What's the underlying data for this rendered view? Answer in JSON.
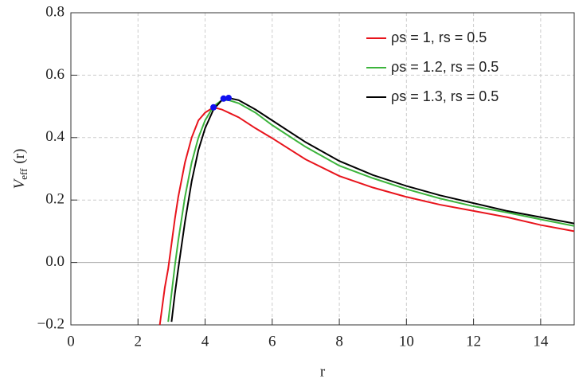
{
  "chart_data": {
    "type": "line",
    "xlabel": "r",
    "ylabel": "V",
    "ylabel_sub": "eff",
    "ylabel_arg": "(r)",
    "x": [
      2.65,
      2.8,
      2.9,
      3.0,
      3.1,
      3.2,
      3.4,
      3.6,
      3.8,
      4.0,
      4.25,
      4.5,
      4.7,
      5,
      5.5,
      6,
      7,
      8,
      9,
      10,
      11,
      12,
      13,
      14,
      15
    ],
    "series": [
      {
        "name": "ρs = 1, rs = 0.5",
        "color": "#e8141c",
        "values": [
          -0.2,
          -0.08,
          -0.02,
          0.06,
          0.14,
          0.21,
          0.32,
          0.4,
          0.455,
          0.48,
          0.497,
          0.49,
          0.48,
          0.465,
          0.43,
          0.398,
          0.33,
          0.277,
          0.24,
          0.21,
          0.185,
          0.165,
          0.145,
          0.12,
          0.1
        ]
      },
      {
        "name": "ρs = 1.2, rs = 0.5",
        "color": "#3cb43c",
        "values": [
          null,
          null,
          -0.19,
          -0.1,
          -0.01,
          0.07,
          0.21,
          0.32,
          0.4,
          0.455,
          0.5,
          0.52,
          0.52,
          0.51,
          0.48,
          0.44,
          0.37,
          0.31,
          0.27,
          0.235,
          0.205,
          0.18,
          0.16,
          0.138,
          0.117
        ]
      },
      {
        "name": "ρs = 1.3, rs = 0.5",
        "color": "#000000",
        "values": [
          null,
          null,
          null,
          -0.19,
          -0.1,
          -0.02,
          0.13,
          0.26,
          0.36,
          0.43,
          0.49,
          0.52,
          0.527,
          0.52,
          0.49,
          0.455,
          0.385,
          0.325,
          0.28,
          0.245,
          0.215,
          0.19,
          0.165,
          0.145,
          0.125
        ]
      }
    ],
    "points": {
      "color": "#1010f0",
      "x": [
        4.25,
        4.55,
        4.7
      ],
      "y": [
        0.497,
        0.525,
        0.527
      ]
    },
    "xlim": [
      0,
      15
    ],
    "xticks": [
      0,
      2,
      4,
      6,
      8,
      10,
      12,
      14
    ],
    "ylim": [
      -0.2,
      0.8
    ],
    "yticks": [
      {
        "value": -0.2,
        "label": "−0.2"
      },
      {
        "value": 0,
        "label": "0.0"
      },
      {
        "value": 0.2,
        "label": "0.2"
      },
      {
        "value": 0.4,
        "label": "0.4"
      },
      {
        "value": 0.6,
        "label": "0.6"
      },
      {
        "value": 0.8,
        "label": "0.8"
      }
    ],
    "grid": true,
    "legend": "upper right"
  }
}
